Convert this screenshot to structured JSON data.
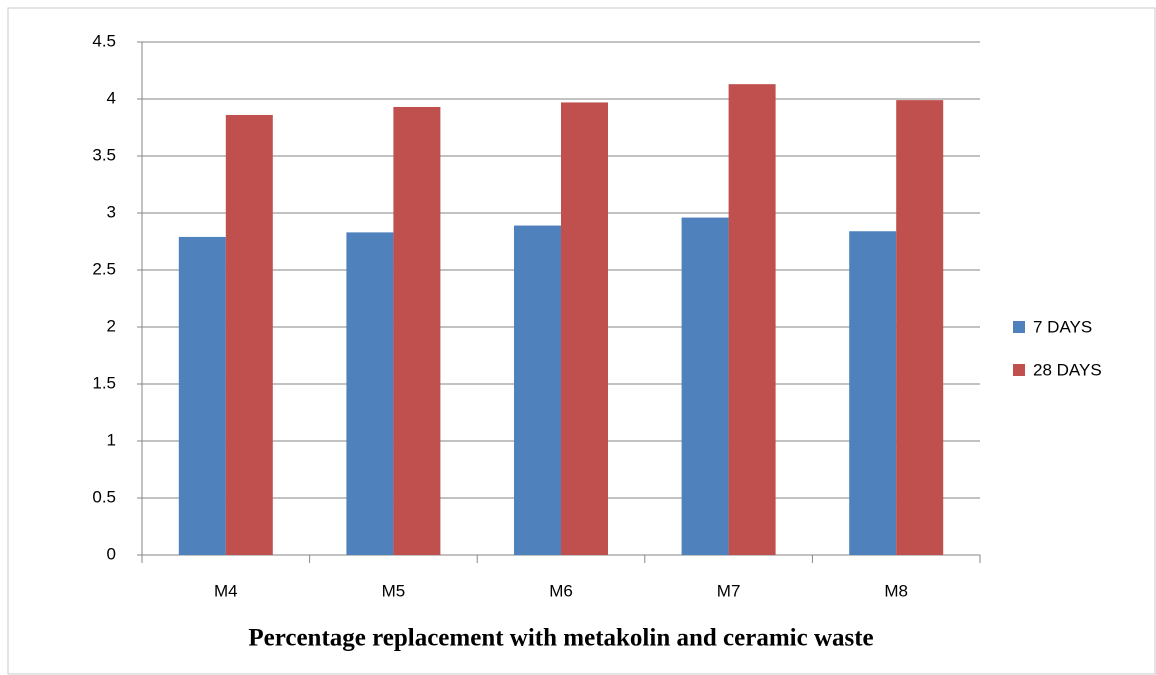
{
  "chart_data": {
    "type": "bar",
    "x_label": "Percentage replacement with metakolin and ceramic waste",
    "categories": [
      "M4",
      "M5",
      "M6",
      "M7",
      "M8"
    ],
    "series": [
      {
        "name": "7 DAYS",
        "color": "#4f81bd",
        "values": [
          2.79,
          2.83,
          2.89,
          2.96,
          2.84
        ]
      },
      {
        "name": "28 DAYS",
        "color": "#c0504d",
        "values": [
          3.86,
          3.93,
          3.97,
          4.13,
          3.99
        ]
      }
    ],
    "ylim": [
      0,
      4.5
    ],
    "yticks": [
      0,
      0.5,
      1,
      1.5,
      2,
      2.5,
      3,
      3.5,
      4,
      4.5
    ],
    "grid": true,
    "legend": "right"
  }
}
